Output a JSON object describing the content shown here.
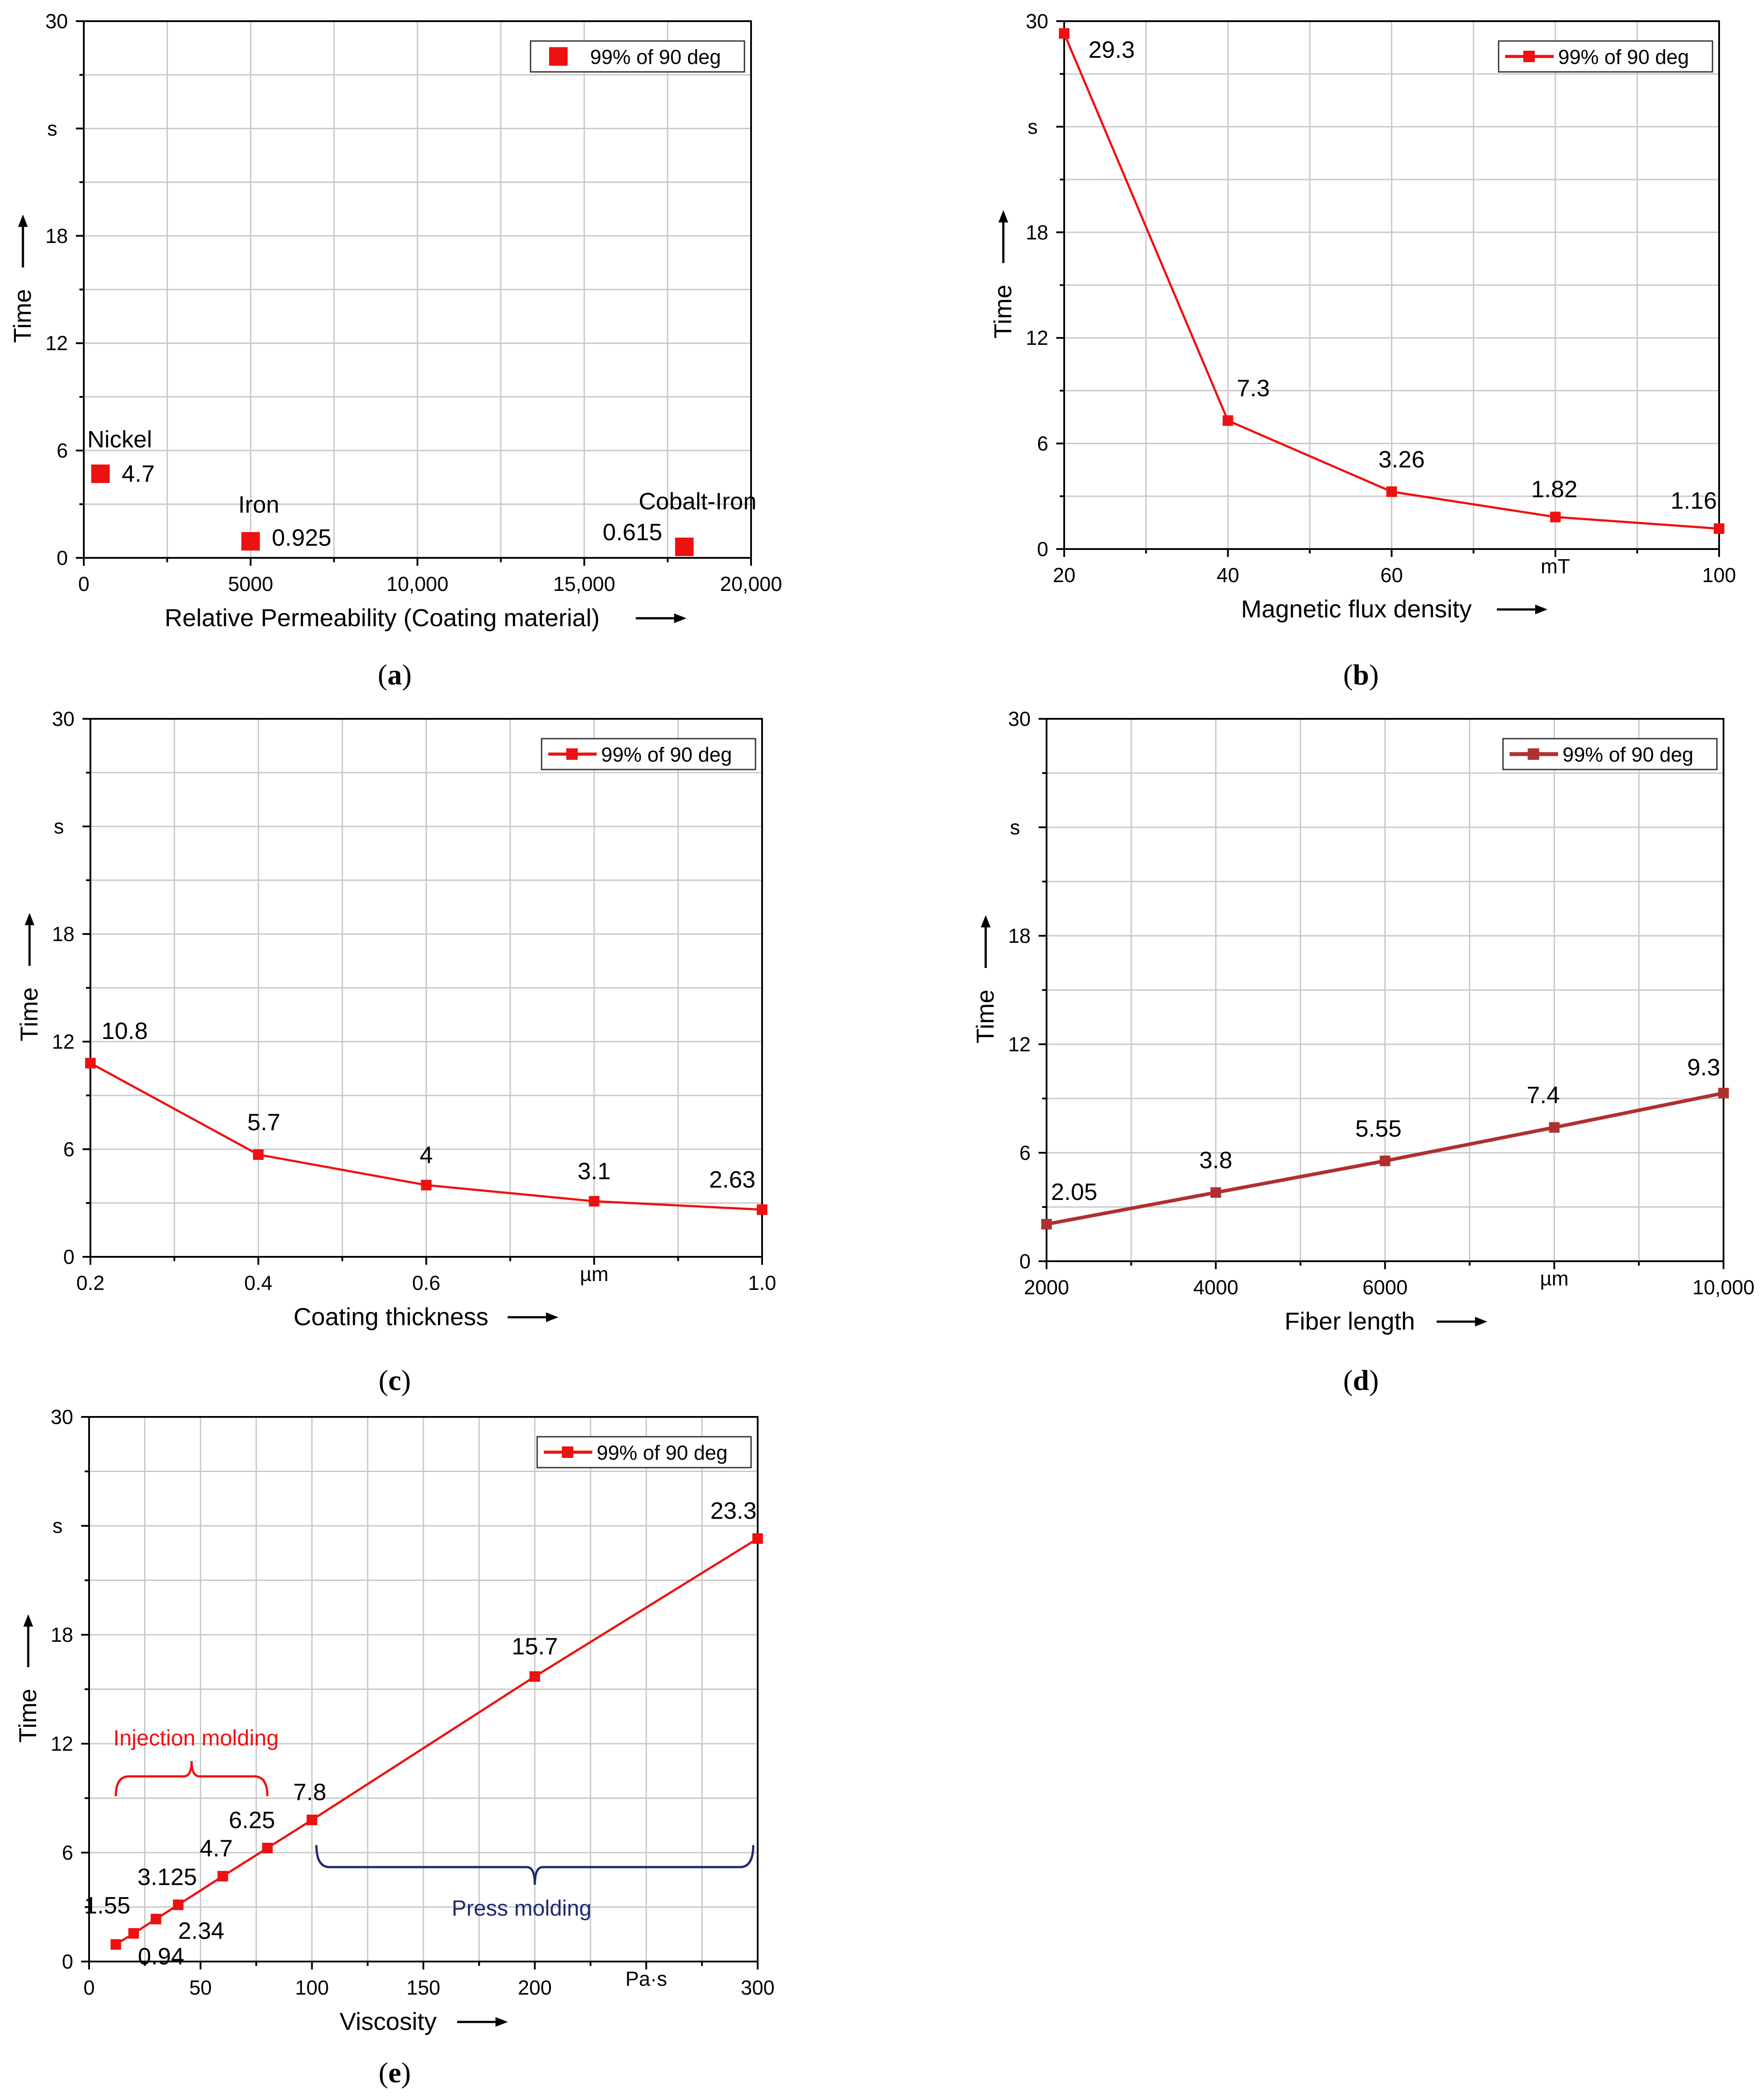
{
  "colors": {
    "series": "#ee1111",
    "series_d": "#b03030",
    "grid": "#c8c8c8",
    "axis": "#000000",
    "brace_press": "#1f2a6e"
  },
  "chart_data": [
    {
      "panel": "a",
      "caption_prefix": "(",
      "caption_letter": "a",
      "caption_suffix": ")",
      "type": "scatter",
      "title": "",
      "xlabel": "Relative Permeability (Coating material)",
      "ylabel": "Time",
      "yunit": "s",
      "xlim": [
        0,
        20000
      ],
      "ylim": [
        0,
        30
      ],
      "xticks": [
        0,
        5000,
        10000,
        15000,
        20000
      ],
      "xtick_labels": [
        "0",
        "5000",
        "10,000",
        "15,000",
        "20,000"
      ],
      "yticks": [
        0,
        6,
        12,
        18,
        30
      ],
      "ytick_labels": [
        "0",
        "6",
        "12",
        "18",
        "30"
      ],
      "legend": "99% of 90 deg",
      "legend_position": "top-right",
      "series": [
        {
          "name": "99% of 90 deg",
          "x": [
            500,
            5000,
            18000
          ],
          "y": [
            4.7,
            0.925,
            0.615
          ],
          "labels": [
            "4.7",
            "0.925",
            "0.615"
          ]
        }
      ],
      "annotations": [
        "Nickel",
        "Iron",
        "Cobalt-Iron"
      ]
    },
    {
      "panel": "b",
      "caption_prefix": "(",
      "caption_letter": "b",
      "caption_suffix": ")",
      "type": "line",
      "xlabel": "Magnetic flux density",
      "ylabel": "Time",
      "yunit": "s",
      "xunit": "mT",
      "xlim": [
        20,
        100
      ],
      "ylim": [
        0,
        30
      ],
      "xticks": [
        20,
        40,
        60,
        80,
        100
      ],
      "xtick_labels": [
        "20",
        "40",
        "60",
        "mT",
        "100"
      ],
      "yticks": [
        0,
        6,
        12,
        18,
        30
      ],
      "ytick_labels": [
        "0",
        "6",
        "12",
        "18",
        "30"
      ],
      "legend": "99% of 90 deg",
      "legend_position": "top-right",
      "series": [
        {
          "name": "99% of 90 deg",
          "x": [
            20,
            40,
            60,
            80,
            100
          ],
          "y": [
            29.3,
            7.3,
            3.26,
            1.82,
            1.16
          ],
          "labels": [
            "29.3",
            "7.3",
            "3.26",
            "1.82",
            "1.16"
          ]
        }
      ]
    },
    {
      "panel": "c",
      "caption_prefix": "(",
      "caption_letter": "c",
      "caption_suffix": ")",
      "type": "line",
      "xlabel": "Coating thickness",
      "ylabel": "Time",
      "yunit": "s",
      "xunit": "µm",
      "xlim": [
        0.2,
        1.0
      ],
      "ylim": [
        0,
        30
      ],
      "xticks": [
        0.2,
        0.4,
        0.6,
        0.8,
        1.0
      ],
      "xtick_labels": [
        "0.2",
        "0.4",
        "0.6",
        "µm",
        "1.0"
      ],
      "yticks": [
        0,
        6,
        12,
        18,
        30
      ],
      "ytick_labels": [
        "0",
        "6",
        "12",
        "18",
        "30"
      ],
      "legend": "99% of 90 deg",
      "legend_position": "top-right",
      "series": [
        {
          "name": "99% of 90 deg",
          "x": [
            0.2,
            0.4,
            0.6,
            0.8,
            1.0
          ],
          "y": [
            10.8,
            5.7,
            4,
            3.1,
            2.63
          ],
          "labels": [
            "10.8",
            "5.7",
            "4",
            "3.1",
            "2.63"
          ]
        }
      ]
    },
    {
      "panel": "d",
      "caption_prefix": "(",
      "caption_letter": "d",
      "caption_suffix": ")",
      "type": "line",
      "xlabel": "Fiber length",
      "ylabel": "Time",
      "yunit": "s",
      "xunit": "µm",
      "xlim": [
        2000,
        10000
      ],
      "ylim": [
        0,
        30
      ],
      "xticks": [
        2000,
        4000,
        6000,
        8000,
        10000
      ],
      "xtick_labels": [
        "2000",
        "4000",
        "6000",
        "µm",
        "10,000"
      ],
      "yticks": [
        0,
        6,
        12,
        18,
        30
      ],
      "ytick_labels": [
        "0",
        "6",
        "12",
        "18",
        "30"
      ],
      "legend": "99% of 90 deg",
      "legend_position": "top-right",
      "series": [
        {
          "name": "99% of 90 deg",
          "x": [
            2000,
            4000,
            6000,
            8000,
            10000
          ],
          "y": [
            2.05,
            3.8,
            5.55,
            7.4,
            9.3
          ],
          "labels": [
            "2.05",
            "3.8",
            "5.55",
            "7.4",
            "9.3"
          ]
        }
      ]
    },
    {
      "panel": "e",
      "caption_prefix": "(",
      "caption_letter": "e",
      "caption_suffix": ")",
      "type": "line",
      "xlabel": "Viscosity",
      "ylabel": "Time",
      "yunit": "s",
      "xunit": "Pa·s",
      "xlim": [
        0,
        300
      ],
      "ylim": [
        0,
        30
      ],
      "xticks": [
        0,
        50,
        100,
        150,
        200,
        250,
        300
      ],
      "xtick_labels": [
        "0",
        "50",
        "100",
        "150",
        "200",
        "Pa·s",
        "300"
      ],
      "yticks": [
        0,
        6,
        12,
        18,
        30
      ],
      "ytick_labels": [
        "0",
        "6",
        "12",
        "18",
        "30"
      ],
      "legend": "99% of 90 deg",
      "legend_position": "top-right",
      "series": [
        {
          "name": "99% of 90 deg",
          "x": [
            12,
            20,
            30,
            40,
            60,
            80,
            100,
            200,
            300
          ],
          "y": [
            0.94,
            1.55,
            2.34,
            3.125,
            4.7,
            6.25,
            7.8,
            15.7,
            23.3
          ],
          "labels": [
            "0.94",
            "1.55",
            "2.34",
            "3.125",
            "4.7",
            "6.25",
            "7.8",
            "15.7",
            "23.3"
          ]
        }
      ],
      "annotations": [
        "Injection molding",
        "Press molding"
      ]
    }
  ]
}
